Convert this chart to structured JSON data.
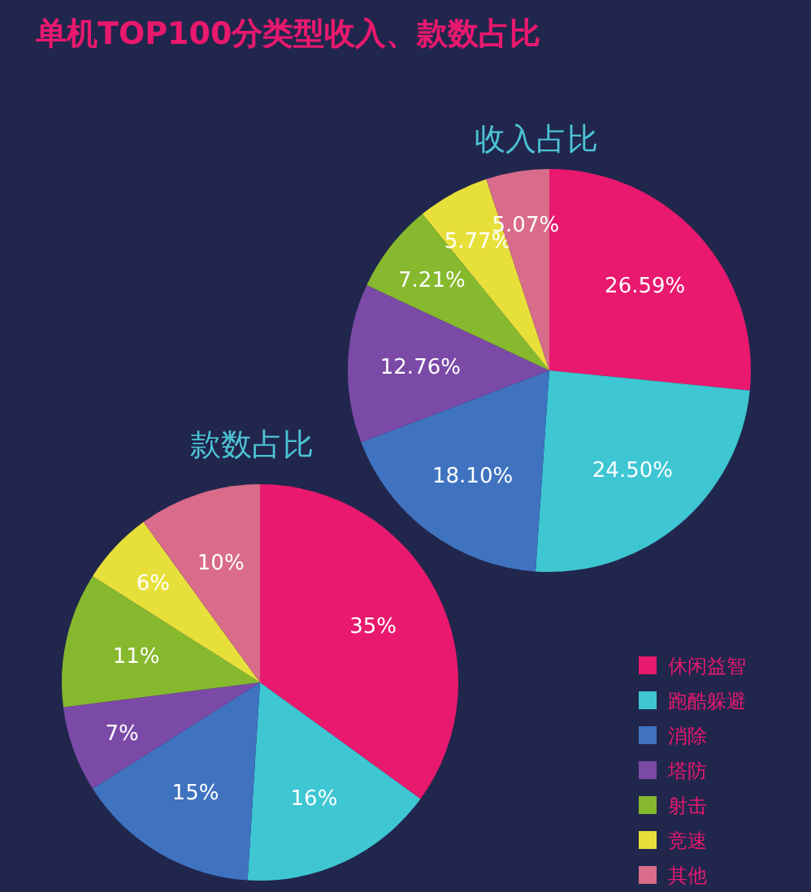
{
  "chart_data": [
    {
      "type": "pie",
      "title": "单机TOP100分类型收入、款数占比",
      "subtitle": "收入占比",
      "values": [
        26.59,
        24.5,
        18.1,
        12.76,
        7.21,
        5.77,
        5.07
      ],
      "value_labels": [
        "26.59%",
        "24.50%",
        "18.10%",
        "12.76%",
        "7.21%",
        "5.77%",
        "5.07%"
      ],
      "colors": [
        "#e8196e",
        "#3ec6d3",
        "#3f73c0",
        "#7b4aa6",
        "#86b92d",
        "#e8e03a",
        "#d86c8a"
      ]
    },
    {
      "type": "pie",
      "title": "款数占比",
      "categories": [
        "休闲益智",
        "跑酷躲避",
        "消除",
        "塔防",
        "射击",
        "竞速",
        "其他"
      ],
      "values": [
        35,
        16,
        15,
        7,
        11,
        6,
        10
      ],
      "value_labels": [
        "35%",
        "16%",
        "15%",
        "7%",
        "11%",
        "6%",
        "10%"
      ],
      "colors": [
        "#e8196e",
        "#3ec6d3",
        "#3f73c0",
        "#7b4aa6",
        "#86b92d",
        "#e8e03a",
        "#d86c8a"
      ],
      "legend": "bottom right"
    }
  ]
}
